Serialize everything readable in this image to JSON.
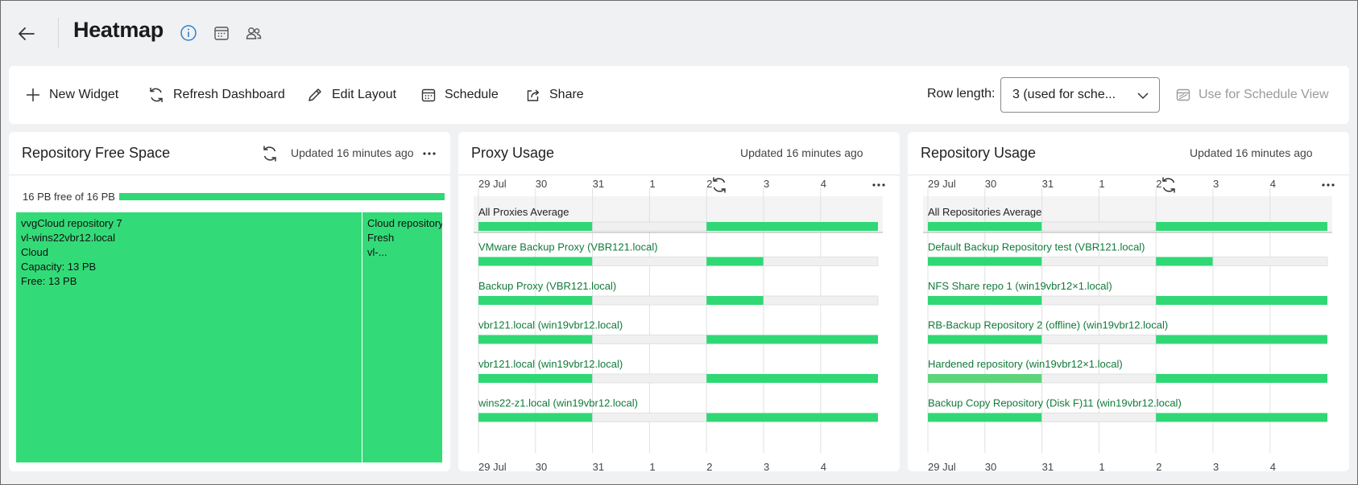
{
  "header": {
    "title": "Heatmap",
    "icons": [
      "back-arrow-icon",
      "info-icon",
      "calendar-icon",
      "users-icon"
    ]
  },
  "toolbar": {
    "new_widget": "New Widget",
    "refresh_dashboard": "Refresh Dashboard",
    "edit_layout": "Edit Layout",
    "schedule": "Schedule",
    "share": "Share",
    "row_length_label": "Row length:",
    "row_length_value": "3 (used for sche...",
    "use_for_schedule_view": "Use for Schedule View"
  },
  "colors": {
    "accent": "#2f7fd0",
    "green": "#2fd874",
    "green_light": "#5ed47a",
    "gray_bar": "#f0f0f0",
    "label_green": "#117a3a"
  },
  "widgets": {
    "repo_free_space": {
      "title": "Repository Free Space",
      "updated": "Updated 16 minutes ago",
      "summary": "16 PB free of 16 PB",
      "tiles": [
        {
          "lines": [
            "vvgCloud repository 7",
            "vl-wins22vbr12.local",
            "Cloud",
            "Capacity: 13 PB",
            "Free: 13 PB"
          ]
        },
        {
          "lines": [
            "Cloud repository",
            "Fresh",
            "vl-..."
          ]
        }
      ]
    },
    "proxy_usage": {
      "title": "Proxy Usage",
      "updated": "Updated 16 minutes ago"
    },
    "repo_usage": {
      "title": "Repository Usage",
      "updated": "Updated 16 minutes ago"
    }
  },
  "chart_data": [
    {
      "type": "heatmap",
      "title": "Proxy Usage",
      "x_ticks": [
        "29 Jul",
        "30",
        "31",
        "1",
        "2",
        "3",
        "4"
      ],
      "rows": [
        {
          "label": "All Proxies Average",
          "segments": [
            1,
            0,
            1,
            1
          ]
        },
        {
          "label": "VMware Backup Proxy (VBR121.local)",
          "segments": [
            1,
            0,
            1,
            0
          ]
        },
        {
          "label": "Backup Proxy (VBR121.local)",
          "segments": [
            1,
            0,
            1,
            0
          ]
        },
        {
          "label": "vbr121.local (win19vbr12.local)",
          "segments": [
            1,
            0,
            1,
            1
          ]
        },
        {
          "label": "vbr121.local (win19vbr12.local)",
          "segments": [
            1,
            0,
            1,
            1
          ]
        },
        {
          "label": "wins22-z1.local (win19vbr12.local)",
          "segments": [
            1,
            0,
            1,
            1
          ]
        }
      ]
    },
    {
      "type": "heatmap",
      "title": "Repository Usage",
      "x_ticks": [
        "29 Jul",
        "30",
        "31",
        "1",
        "2",
        "3",
        "4"
      ],
      "rows": [
        {
          "label": "All Repositories Average",
          "segments": [
            1,
            0,
            1,
            1
          ]
        },
        {
          "label": "Default Backup Repository test (VBR121.local)",
          "segments": [
            1,
            0,
            1,
            0
          ]
        },
        {
          "label": "NFS Share repo 1 (win19vbr12×1.local)",
          "segments": [
            1,
            0,
            1,
            1
          ]
        },
        {
          "label": "RB-Backup Repository 2 (offline) (win19vbr12.local)",
          "segments": [
            1,
            0,
            1,
            1
          ]
        },
        {
          "label": "Hardened repository (win19vbr12×1.local)",
          "segments": [
            2,
            0,
            1,
            1
          ]
        },
        {
          "label": "Backup Copy Repository (Disk F)11 (win19vbr12.local)",
          "segments": [
            1,
            0,
            1,
            1
          ]
        }
      ]
    }
  ]
}
